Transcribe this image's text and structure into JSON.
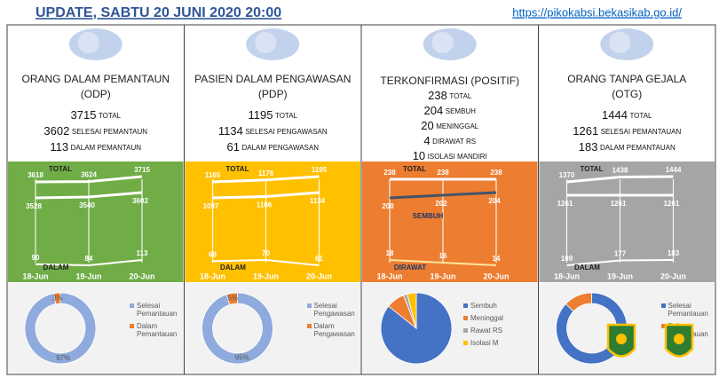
{
  "header": {
    "title": "UPDATE, SABTU  20 JUNI 2020  20:00",
    "url": "https://pikokabsi.bekasikab.go.id/"
  },
  "panels": [
    {
      "title": "ORANG DALAM PEMANTAUN",
      "abbr": "(ODP)",
      "color": "#70ad47",
      "stats": [
        {
          "value": 3715,
          "label": "TOTAL"
        },
        {
          "value": 3602,
          "label": "SELESAI PEMANTAUN"
        },
        {
          "value": 113,
          "label": "DALAM PEMANTAUN"
        }
      ],
      "trend": {
        "dates": [
          "18-Jun",
          "19-Jun",
          "20-Jun"
        ],
        "series": [
          {
            "name": "TOTAL",
            "color": "#ffffff",
            "values": [
              3618,
              3624,
              3715
            ]
          },
          {
            "color": "#ffffff",
            "values": [
              3528,
              3540,
              3602
            ]
          },
          {
            "name": "DALAM",
            "color": "#ffffff",
            "values": [
              90,
              84,
              113
            ]
          }
        ]
      },
      "pie": {
        "donut": true,
        "labels": [
          "Selesai Pemantauan",
          "Dalam Pemantauan"
        ],
        "colors": [
          "#8faadc",
          "#ed7d31"
        ],
        "values": [
          97,
          3
        ],
        "value_labels": [
          "97%",
          "3%"
        ]
      }
    },
    {
      "title": "PASIEN DALAM PENGAWASAN",
      "abbr": "(PDP)",
      "color": "#ffc000",
      "stats": [
        {
          "value": 1195,
          "label": "TOTAL"
        },
        {
          "value": 1134,
          "label": "SELESAI PENGAWASAN"
        },
        {
          "value": 61,
          "label": "DALAM PENGAWASAN"
        }
      ],
      "trend": {
        "dates": [
          "18-Jun",
          "19-Jun",
          "20-Jun"
        ],
        "series": [
          {
            "name": "TOTAL",
            "color": "#ffffff",
            "values": [
              1165,
              1176,
              1195
            ]
          },
          {
            "color": "#ffffff",
            "values": [
              1097,
              1106,
              1134
            ]
          },
          {
            "name": "DALAM",
            "color": "#ffffff",
            "values": [
              68,
              70,
              61
            ]
          }
        ]
      },
      "pie": {
        "donut": true,
        "labels": [
          "Selesai Pengawasan",
          "Dalam Pengawasan"
        ],
        "colors": [
          "#8faadc",
          "#ed7d31"
        ],
        "values": [
          95,
          5
        ],
        "value_labels": [
          "95%",
          "5%"
        ]
      }
    },
    {
      "title": "TERKONFIRMASI (POSITIF)",
      "color": "#ed7d31",
      "stats": [
        {
          "value": 238,
          "label": "TOTAL"
        },
        {
          "value": 204,
          "label": "SEMBUH"
        },
        {
          "value": 20,
          "label": "MENINGGAL"
        },
        {
          "value": 4,
          "label": "DIRAWAT RS"
        },
        {
          "value": 10,
          "label": "ISOLASI MANDIRI"
        }
      ],
      "trend": {
        "dates": [
          "18-Jun",
          "19-Jun",
          "20-Jun"
        ],
        "series": [
          {
            "name": "TOTAL",
            "color": "#ffffff",
            "values": [
              238,
              238,
              238
            ]
          },
          {
            "name": "SEMBUH",
            "color": "#44546a",
            "values": [
              200,
              202,
              204
            ]
          },
          {
            "name": "DIRAWAT",
            "color": "#ffe699",
            "values": [
              18,
              16,
              14
            ]
          }
        ]
      },
      "pie": {
        "donut": false,
        "labels": [
          "Sembuh",
          "Meninggal",
          "Rawat RS",
          "Isolasi M"
        ],
        "colors": [
          "#4472c4",
          "#ed7d31",
          "#a5a5a5",
          "#ffc000"
        ],
        "values": [
          204,
          20,
          4,
          10
        ]
      }
    },
    {
      "title": "ORANG TANPA GEJALA",
      "abbr": "(OTG)",
      "color": "#a5a5a5",
      "stats": [
        {
          "value": 1444,
          "label": "TOTAL"
        },
        {
          "value": 1261,
          "label": "SELESAI PEMANTAUAN"
        },
        {
          "value": 183,
          "label": "DALAM PEMANTAUAN"
        }
      ],
      "trend": {
        "dates": [
          "18-Jun",
          "19-Jun",
          "20-Jun"
        ],
        "series": [
          {
            "name": "TOTAL",
            "color": "#ffffff",
            "values": [
              1370,
              1438,
              1444
            ]
          },
          {
            "color": "#ffffff",
            "values": [
              1261,
              1261,
              1261
            ]
          },
          {
            "name": "DALAM",
            "color": "#ffffff",
            "values": [
              109,
              177,
              183
            ]
          }
        ]
      },
      "pie": {
        "donut": true,
        "labels": [
          "Selesai Pemantauan",
          "Dalam Pemantauan"
        ],
        "colors": [
          "#4472c4",
          "#ed7d31"
        ],
        "values": [
          87,
          13
        ]
      }
    }
  ]
}
